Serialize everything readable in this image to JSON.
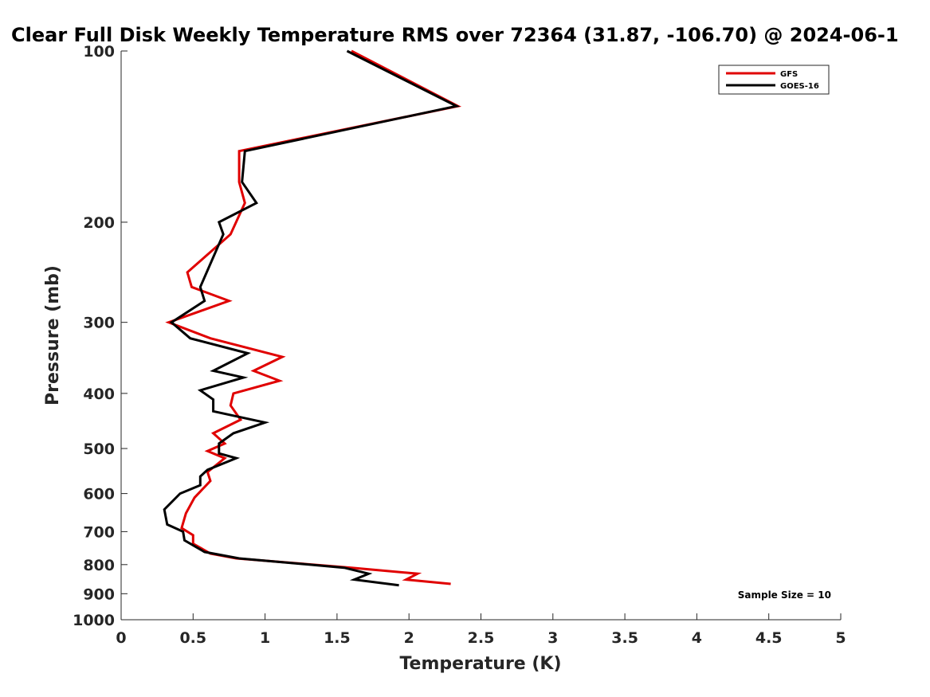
{
  "chart_data": {
    "type": "line",
    "title": "Clear Full Disk Weekly Temperature RMS over 72364 (31.87, -106.70) @ 2024-06-1",
    "xlabel": "Temperature (K)",
    "ylabel": "Pressure (mb)",
    "xlim": [
      0,
      5
    ],
    "ylim": [
      1000,
      100
    ],
    "yscale": "log",
    "y_reversed": true,
    "xticks": [
      "0",
      "0.5",
      "1",
      "1.5",
      "2",
      "2.5",
      "3",
      "3.5",
      "4",
      "4.5",
      "5"
    ],
    "yticks": [
      "100",
      "200",
      "300",
      "400",
      "500",
      "600",
      "700",
      "800",
      "900",
      "1000"
    ],
    "grid": false,
    "legend_position": "top-right",
    "annotation": "Sample Size = 10",
    "series": [
      {
        "name": "GFS",
        "color": "#e00000",
        "points": [
          [
            1.6,
            100
          ],
          [
            2.34,
            125
          ],
          [
            0.82,
            150
          ],
          [
            0.82,
            170
          ],
          [
            0.86,
            185
          ],
          [
            0.76,
            210
          ],
          [
            0.46,
            245
          ],
          [
            0.49,
            260
          ],
          [
            0.75,
            275
          ],
          [
            0.33,
            300
          ],
          [
            0.62,
            320
          ],
          [
            1.12,
            345
          ],
          [
            0.92,
            365
          ],
          [
            1.1,
            380
          ],
          [
            0.78,
            400
          ],
          [
            0.76,
            420
          ],
          [
            0.83,
            445
          ],
          [
            0.64,
            470
          ],
          [
            0.72,
            490
          ],
          [
            0.6,
            505
          ],
          [
            0.72,
            520
          ],
          [
            0.6,
            550
          ],
          [
            0.62,
            570
          ],
          [
            0.51,
            610
          ],
          [
            0.45,
            650
          ],
          [
            0.42,
            690
          ],
          [
            0.5,
            710
          ],
          [
            0.5,
            735
          ],
          [
            0.62,
            765
          ],
          [
            0.8,
            780
          ],
          [
            1.6,
            810
          ],
          [
            2.06,
            830
          ],
          [
            1.98,
            850
          ],
          [
            2.29,
            865
          ]
        ]
      },
      {
        "name": "GOES-16",
        "color": "#000000",
        "points": [
          [
            1.57,
            100
          ],
          [
            2.33,
            125
          ],
          [
            0.86,
            150
          ],
          [
            0.84,
            170
          ],
          [
            0.94,
            185
          ],
          [
            0.68,
            200
          ],
          [
            0.71,
            210
          ],
          [
            0.55,
            260
          ],
          [
            0.58,
            275
          ],
          [
            0.35,
            300
          ],
          [
            0.48,
            320
          ],
          [
            0.88,
            340
          ],
          [
            0.64,
            365
          ],
          [
            0.85,
            375
          ],
          [
            0.55,
            395
          ],
          [
            0.64,
            410
          ],
          [
            0.64,
            430
          ],
          [
            1.0,
            450
          ],
          [
            0.78,
            470
          ],
          [
            0.68,
            490
          ],
          [
            0.68,
            510
          ],
          [
            0.8,
            520
          ],
          [
            0.6,
            545
          ],
          [
            0.55,
            560
          ],
          [
            0.55,
            580
          ],
          [
            0.41,
            600
          ],
          [
            0.3,
            640
          ],
          [
            0.32,
            680
          ],
          [
            0.43,
            700
          ],
          [
            0.44,
            725
          ],
          [
            0.58,
            760
          ],
          [
            0.82,
            780
          ],
          [
            1.55,
            810
          ],
          [
            1.72,
            830
          ],
          [
            1.62,
            850
          ],
          [
            1.93,
            870
          ]
        ]
      }
    ]
  }
}
